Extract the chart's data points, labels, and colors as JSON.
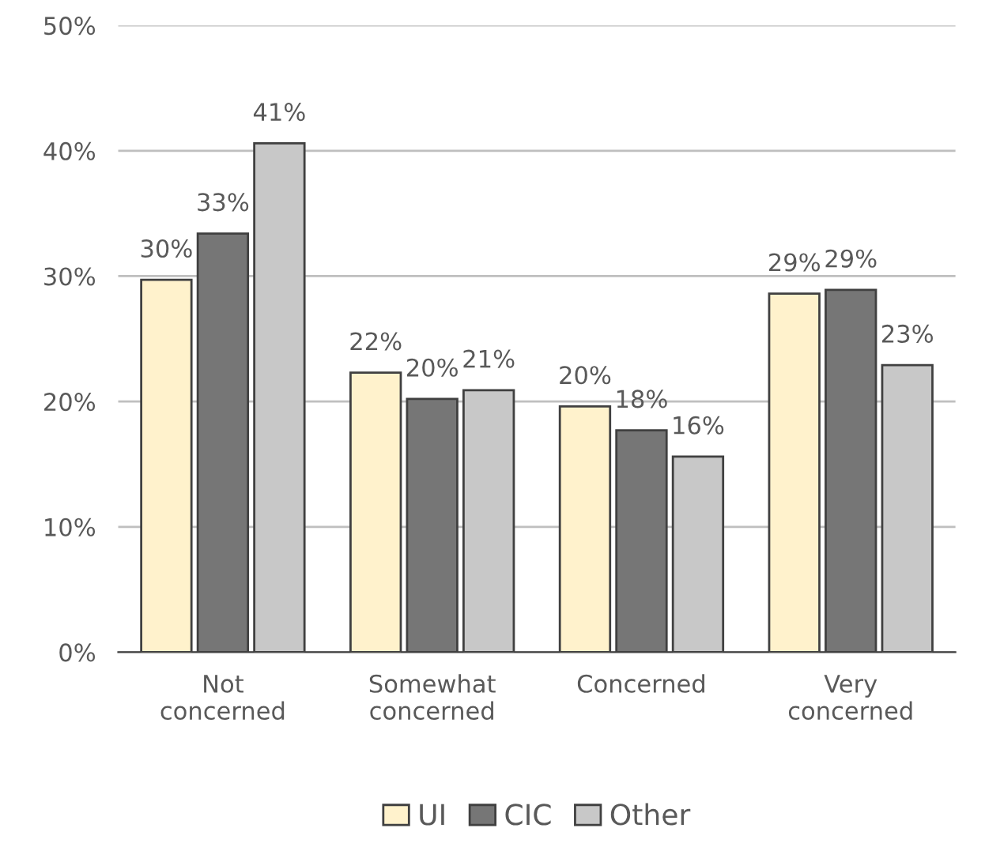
{
  "chart_data": {
    "type": "bar",
    "categories": [
      "Not\nconcerned",
      "Somewhat\nconcerned",
      "Concerned",
      "Very\nconcerned"
    ],
    "series": [
      {
        "name": "UI",
        "color": "#fff2cc",
        "values": [
          29.7,
          22.3,
          19.6,
          28.6
        ],
        "value_labels": [
          "30%",
          "22%",
          "20%",
          "29%"
        ]
      },
      {
        "name": "CIC",
        "color": "#767676",
        "values": [
          33.4,
          20.2,
          17.7,
          28.9
        ],
        "value_labels": [
          "33%",
          "20%",
          "18%",
          "29%"
        ]
      },
      {
        "name": "Other",
        "color": "#c8c8c8",
        "values": [
          40.6,
          20.9,
          15.6,
          22.9
        ],
        "value_labels": [
          "41%",
          "21%",
          "16%",
          "23%"
        ]
      }
    ],
    "ylim": [
      0,
      50
    ],
    "yticks": [
      {
        "value": 0,
        "label": "0%"
      },
      {
        "value": 10,
        "label": "10%"
      },
      {
        "value": 20,
        "label": "20%"
      },
      {
        "value": 30,
        "label": "30%"
      },
      {
        "value": 40,
        "label": "40%"
      },
      {
        "value": 50,
        "label": "50%"
      }
    ],
    "grid": "y",
    "legend": "bottom"
  }
}
